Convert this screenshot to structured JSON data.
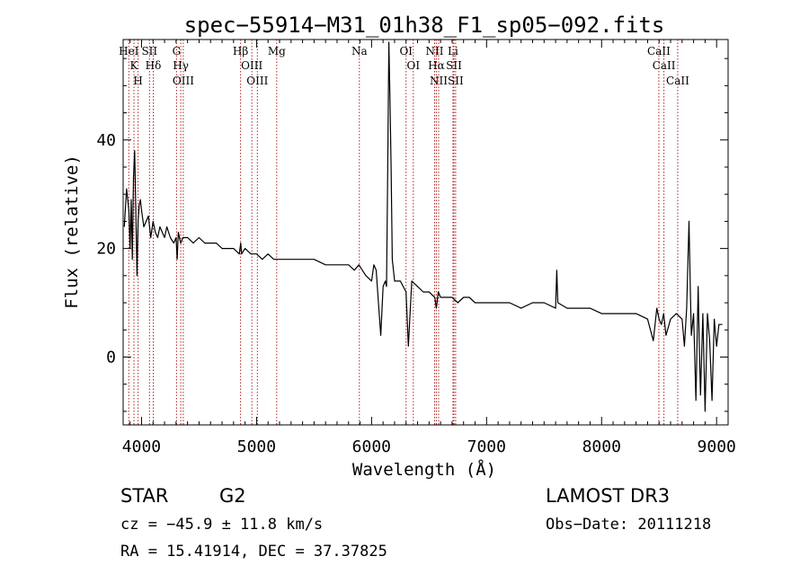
{
  "chart_data": {
    "type": "line",
    "title": "spec−55914−M31_01h38_F1_sp05−092.fits",
    "xlabel": "Wavelength (Å)",
    "ylabel": "Flux (relative)",
    "xlim": [
      3840,
      9100
    ],
    "ylim": [
      -12.5,
      58.5
    ],
    "x_ticks": [
      4000,
      5000,
      6000,
      7000,
      8000,
      9000
    ],
    "x_tick_labels": [
      "4000",
      "5000",
      "6000",
      "7000",
      "8000",
      "9000"
    ],
    "y_ticks": [
      0,
      20,
      40
    ],
    "y_tick_labels": [
      "0",
      "20",
      "40"
    ],
    "series": [
      {
        "name": "flux",
        "x": [
          3850,
          3870,
          3890,
          3900,
          3910,
          3920,
          3930,
          3940,
          3950,
          3960,
          3970,
          3980,
          3990,
          4000,
          4020,
          4040,
          4060,
          4080,
          4100,
          4120,
          4140,
          4160,
          4180,
          4200,
          4220,
          4250,
          4280,
          4300,
          4310,
          4320,
          4340,
          4360,
          4400,
          4450,
          4500,
          4550,
          4600,
          4650,
          4700,
          4750,
          4800,
          4850,
          4862,
          4870,
          4900,
          4950,
          5000,
          5050,
          5100,
          5150,
          5200,
          5300,
          5400,
          5500,
          5600,
          5700,
          5800,
          5850,
          5890,
          5920,
          5950,
          6000,
          6020,
          6040,
          6060,
          6080,
          6100,
          6120,
          6130,
          6140,
          6150,
          6160,
          6170,
          6180,
          6200,
          6250,
          6300,
          6320,
          6350,
          6400,
          6450,
          6500,
          6550,
          6563,
          6580,
          6600,
          6650,
          6700,
          6750,
          6800,
          6850,
          6900,
          6950,
          7000,
          7050,
          7100,
          7150,
          7200,
          7300,
          7400,
          7500,
          7600,
          7610,
          7620,
          7700,
          7800,
          7900,
          8000,
          8100,
          8200,
          8300,
          8400,
          8450,
          8480,
          8500,
          8520,
          8540,
          8560,
          8600,
          8650,
          8700,
          8720,
          8740,
          8760,
          8770,
          8780,
          8800,
          8820,
          8840,
          8850,
          8860,
          8880,
          8900,
          8920,
          8940,
          8960,
          8980,
          9000,
          9020,
          9050
        ],
        "values": [
          24,
          31,
          27,
          20,
          29,
          18,
          33,
          38,
          27,
          15,
          25,
          28,
          29,
          27,
          24,
          25,
          26,
          22,
          25,
          23,
          22,
          24,
          23,
          22,
          24,
          22,
          21,
          22,
          18,
          23,
          21,
          22,
          22,
          21,
          22,
          21,
          21,
          21,
          20,
          20,
          20,
          19,
          21,
          19,
          20,
          19,
          19,
          18,
          19,
          18,
          18,
          18,
          18,
          18,
          17,
          17,
          17,
          16,
          17,
          16,
          15,
          14,
          17,
          16,
          10,
          4,
          13,
          14,
          13,
          34,
          58,
          48,
          35,
          18,
          14,
          14,
          12,
          2,
          14,
          13,
          12,
          12,
          11,
          9,
          12,
          11,
          11,
          11,
          10,
          11,
          11,
          10,
          10,
          10,
          10,
          10,
          10,
          10,
          9,
          10,
          10,
          9,
          16,
          10,
          9,
          9,
          9,
          8,
          8,
          8,
          8,
          7,
          3,
          9,
          7,
          6,
          8,
          4,
          7,
          8,
          7,
          2,
          9,
          25,
          14,
          4,
          8,
          -8,
          13,
          2,
          -7,
          8,
          -10,
          8,
          3,
          -8,
          7,
          2,
          6,
          6
        ]
      }
    ],
    "line_groups": [
      {
        "name": "group-0",
        "entries": [
          {
            "label": "HeI",
            "wavelength": 3889
          },
          {
            "label": "K",
            "wavelength": 3934
          },
          {
            "label": "H",
            "wavelength": 3970
          },
          {
            "label": "SII",
            "wavelength": 4069
          },
          {
            "label": "Hδ",
            "wavelength": 4102
          },
          {
            "label": "G",
            "wavelength": 4304
          },
          {
            "label": "Hγ",
            "wavelength": 4341
          },
          {
            "label": "OIII",
            "wavelength": 4363
          },
          {
            "label": "Hβ",
            "wavelength": 4861
          },
          {
            "label": "OIII",
            "wavelength": 4959
          },
          {
            "label": "OIII",
            "wavelength": 5007
          },
          {
            "label": "Mg",
            "wavelength": 5175
          },
          {
            "label": "Na",
            "wavelength": 5894
          },
          {
            "label": "OI",
            "wavelength": 6300
          },
          {
            "label": "OI",
            "wavelength": 6363
          },
          {
            "label": "NII",
            "wavelength": 6548
          },
          {
            "label": "Hα",
            "wavelength": 6563
          },
          {
            "label": "NII",
            "wavelength": 6583
          },
          {
            "label": "Li",
            "wavelength": 6708
          },
          {
            "label": "SII",
            "wavelength": 6716
          },
          {
            "label": "SII",
            "wavelength": 6731
          },
          {
            "label": "CaII",
            "wavelength": 8498
          },
          {
            "label": "CaII",
            "wavelength": 8542
          },
          {
            "label": "CaII",
            "wavelength": 8662
          }
        ]
      }
    ],
    "grid": false,
    "legend": "none"
  },
  "info": {
    "class_label": "STAR",
    "subclass": "G2",
    "survey": "LAMOST DR3",
    "cz_text": "cz = −45.9 ± 11.8 km/s",
    "obs_date": "Obs−Date: 20111218",
    "coords": "RA =  15.41914, DEC =  37.37825"
  },
  "colors": {
    "axis": "#000000",
    "spectrum": "#000000",
    "line_marker": "#b32020",
    "background": "#ffffff"
  }
}
